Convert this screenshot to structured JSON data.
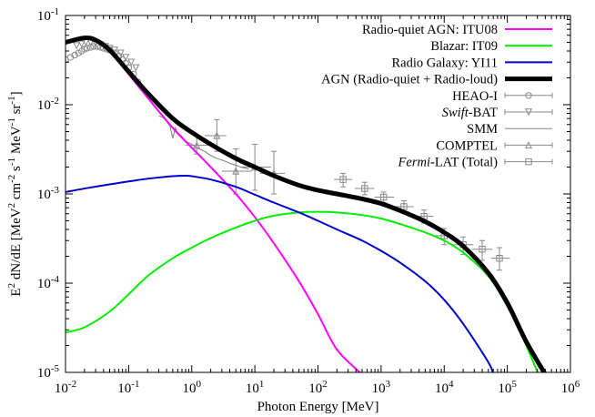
{
  "chart_data": {
    "type": "line",
    "xlabel": "Photon Energy [MeV]",
    "ylabel": {
      "base": "E",
      "sup1": "2",
      "mid": " dN/dE [MeV",
      "sup2": "2",
      "mid2": " cm",
      "sup3": "-2",
      "mid3": " s",
      "sup4": "-1",
      "mid4": " MeV",
      "sup5": "-1",
      "mid5": " sr",
      "sup6": "-1",
      "end": "]"
    },
    "x_scale": "log",
    "y_scale": "log",
    "xlim": [
      0.01,
      1000000
    ],
    "ylim": [
      1e-05,
      0.1
    ],
    "x_ticks": [
      {
        "value": 0.01,
        "base": "10",
        "exp": "-2"
      },
      {
        "value": 0.1,
        "base": "10",
        "exp": "-1"
      },
      {
        "value": 1,
        "base": "10",
        "exp": "0"
      },
      {
        "value": 10,
        "base": "10",
        "exp": "1"
      },
      {
        "value": 100,
        "base": "10",
        "exp": "2"
      },
      {
        "value": 1000,
        "base": "10",
        "exp": "3"
      },
      {
        "value": 10000,
        "base": "10",
        "exp": "4"
      },
      {
        "value": 100000,
        "base": "10",
        "exp": "5"
      },
      {
        "value": 1000000,
        "base": "10",
        "exp": "6"
      }
    ],
    "y_ticks": [
      {
        "value": 1e-05,
        "base": "10",
        "exp": "-5"
      },
      {
        "value": 0.0001,
        "base": "10",
        "exp": "-4"
      },
      {
        "value": 0.001,
        "base": "10",
        "exp": "-3"
      },
      {
        "value": 0.01,
        "base": "10",
        "exp": "-2"
      },
      {
        "value": 0.1,
        "base": "10",
        "exp": "-1"
      }
    ],
    "legend_position": "top-right",
    "series": [
      {
        "name": "Radio-quiet AGN: ITU08",
        "color": "#ff00ff",
        "width": 2,
        "x": [
          0.01,
          0.02,
          0.03,
          0.05,
          0.1,
          0.2,
          0.5,
          1,
          2,
          5,
          10,
          20,
          50,
          100,
          200,
          500
        ],
        "y": [
          0.049,
          0.055,
          0.052,
          0.04,
          0.022,
          0.012,
          0.0055,
          0.0033,
          0.002,
          0.001,
          0.00055,
          0.00028,
          0.000105,
          4.5e-05,
          1.8e-05,
          9.5e-06
        ]
      },
      {
        "name": "Blazar: IT09",
        "color": "#00ee00",
        "width": 2,
        "x": [
          0.01,
          0.02,
          0.05,
          0.1,
          0.2,
          0.5,
          1,
          2,
          5,
          10,
          20,
          50,
          100,
          200,
          500,
          1000,
          2000,
          5000,
          10000,
          20000,
          50000,
          100000,
          200000,
          400000
        ],
        "y": [
          2.8e-05,
          3.2e-05,
          4.8e-05,
          7.5e-05,
          0.00012,
          0.00019,
          0.00025,
          0.00032,
          0.00042,
          0.0005,
          0.00057,
          0.00062,
          0.00063,
          0.00062,
          0.00058,
          0.00053,
          0.00046,
          0.00037,
          0.0003,
          0.00022,
          0.00012,
          5.5e-05,
          2e-05,
          6e-06
        ]
      },
      {
        "name": "Radio Galaxy: YI11",
        "color": "#0000cc",
        "width": 2,
        "x": [
          0.01,
          0.02,
          0.05,
          0.1,
          0.2,
          0.5,
          0.8,
          1,
          2,
          5,
          10,
          20,
          50,
          100,
          200,
          500,
          1000,
          2000,
          5000,
          10000,
          20000,
          50000,
          60000
        ],
        "y": [
          0.00105,
          0.00115,
          0.00128,
          0.00138,
          0.00148,
          0.00158,
          0.0016,
          0.00158,
          0.00145,
          0.0012,
          0.00098,
          0.0008,
          0.00062,
          0.0005,
          0.0004,
          0.0003,
          0.00023,
          0.00017,
          0.000105,
          6.5e-05,
          3.5e-05,
          1.3e-05,
          9.5e-06
        ]
      },
      {
        "name": "AGN (Radio-quiet + Radio-loud)",
        "color": "#000000",
        "width": 5,
        "x": [
          0.01,
          0.02,
          0.03,
          0.05,
          0.1,
          0.2,
          0.5,
          1,
          2,
          5,
          10,
          20,
          50,
          100,
          200,
          500,
          1000,
          2000,
          5000,
          10000,
          20000,
          50000,
          100000,
          200000,
          400000
        ],
        "y": [
          0.05,
          0.056,
          0.053,
          0.041,
          0.0235,
          0.0135,
          0.007,
          0.0049,
          0.0036,
          0.0025,
          0.002,
          0.0016,
          0.00125,
          0.0011,
          0.001,
          0.00088,
          0.00078,
          0.00065,
          0.00049,
          0.00037,
          0.00026,
          0.00013,
          6e-05,
          2.2e-05,
          9.5e-06
        ]
      }
    ],
    "datasets": [
      {
        "name": "HEAO-I",
        "marker": "circle",
        "color": "#888888",
        "points": [
          [
            0.01,
            0.032
          ],
          [
            0.012,
            0.034
          ],
          [
            0.014,
            0.036
          ],
          [
            0.016,
            0.038
          ],
          [
            0.018,
            0.04
          ],
          [
            0.02,
            0.042
          ],
          [
            0.022,
            0.043
          ],
          [
            0.025,
            0.044
          ],
          [
            0.028,
            0.045
          ],
          [
            0.032,
            0.045
          ],
          [
            0.036,
            0.044
          ],
          [
            0.04,
            0.043
          ],
          [
            0.045,
            0.042
          ],
          [
            0.05,
            0.041
          ],
          [
            0.06,
            0.038
          ],
          [
            0.07,
            0.035
          ],
          [
            0.08,
            0.032
          ],
          [
            0.09,
            0.029
          ],
          [
            0.1,
            0.026
          ],
          [
            0.12,
            0.022
          ],
          [
            0.14,
            0.018
          ]
        ]
      },
      {
        "name": "Swift-BAT",
        "marker": "triangle-down",
        "color": "#888888",
        "points": [
          [
            0.015,
            0.046
          ],
          [
            0.018,
            0.048
          ],
          [
            0.021,
            0.05
          ],
          [
            0.025,
            0.05
          ],
          [
            0.03,
            0.049
          ],
          [
            0.036,
            0.047
          ],
          [
            0.043,
            0.045
          ],
          [
            0.05,
            0.043
          ],
          [
            0.06,
            0.041
          ],
          [
            0.075,
            0.038
          ],
          [
            0.09,
            0.034
          ],
          [
            0.11,
            0.03
          ],
          [
            0.13,
            0.026
          ]
        ]
      },
      {
        "name": "SMM",
        "marker": "line",
        "color": "#888888",
        "points": [
          [
            0.3,
            0.0075
          ],
          [
            0.35,
            0.0072
          ],
          [
            0.4,
            0.0065
          ],
          [
            0.45,
            0.0058
          ],
          [
            0.5,
            0.0042
          ],
          [
            0.55,
            0.0055
          ],
          [
            0.6,
            0.0048
          ],
          [
            0.7,
            0.0044
          ],
          [
            0.8,
            0.0039
          ],
          [
            1,
            0.0036
          ],
          [
            1.3,
            0.0032
          ],
          [
            1.6,
            0.003
          ],
          [
            2,
            0.0027
          ],
          [
            2.5,
            0.0025
          ],
          [
            3,
            0.0024
          ],
          [
            3.5,
            0.0023
          ],
          [
            4,
            0.0022
          ],
          [
            5,
            0.0021
          ],
          [
            6,
            0.002
          ],
          [
            8,
            0.0019
          ]
        ]
      },
      {
        "name": "COMPTEL",
        "marker": "triangle-up",
        "color": "#888888",
        "points": [
          [
            1.2,
            0.0035
          ],
          [
            2.5,
            0.0045
          ],
          [
            5,
            0.0018
          ],
          [
            10,
            0.002
          ],
          [
            20,
            0.0017
          ]
        ],
        "x_err": [
          [
            0.8,
            1.8
          ],
          [
            1.6,
            3.5
          ],
          [
            3,
            9
          ],
          [
            6,
            18
          ],
          [
            12,
            30
          ]
        ],
        "y_err": [
          [
            0.0028,
            0.0045
          ],
          [
            0.003,
            0.0068
          ],
          [
            0.001,
            0.0032
          ],
          [
            0.0011,
            0.0036
          ],
          [
            0.001,
            0.003
          ]
        ]
      },
      {
        "name": "Fermi-LAT (Total)",
        "marker": "square",
        "color": "#888888",
        "points": [
          [
            250,
            0.00145
          ],
          [
            550,
            0.00115
          ],
          [
            1100,
            0.00092
          ],
          [
            2300,
            0.00072
          ],
          [
            4800,
            0.00056
          ],
          [
            10000,
            0.00034
          ],
          [
            20000,
            0.00027
          ],
          [
            40000,
            0.00024
          ],
          [
            75000,
            0.00019
          ]
        ],
        "x_err": [
          [
            180,
            350
          ],
          [
            380,
            780
          ],
          [
            780,
            1600
          ],
          [
            1600,
            3300
          ],
          [
            3400,
            6800
          ],
          [
            7000,
            14000
          ],
          [
            14000,
            29000
          ],
          [
            28000,
            58000
          ],
          [
            55000,
            110000
          ]
        ],
        "y_err": [
          [
            0.0012,
            0.0017
          ],
          [
            0.00098,
            0.00135
          ],
          [
            0.0008,
            0.00105
          ],
          [
            0.00062,
            0.00084
          ],
          [
            0.00047,
            0.00066
          ],
          [
            0.00027,
            0.00041
          ],
          [
            0.00021,
            0.00033
          ],
          [
            0.00018,
            0.0003
          ],
          [
            0.00014,
            0.00025
          ]
        ]
      }
    ]
  }
}
